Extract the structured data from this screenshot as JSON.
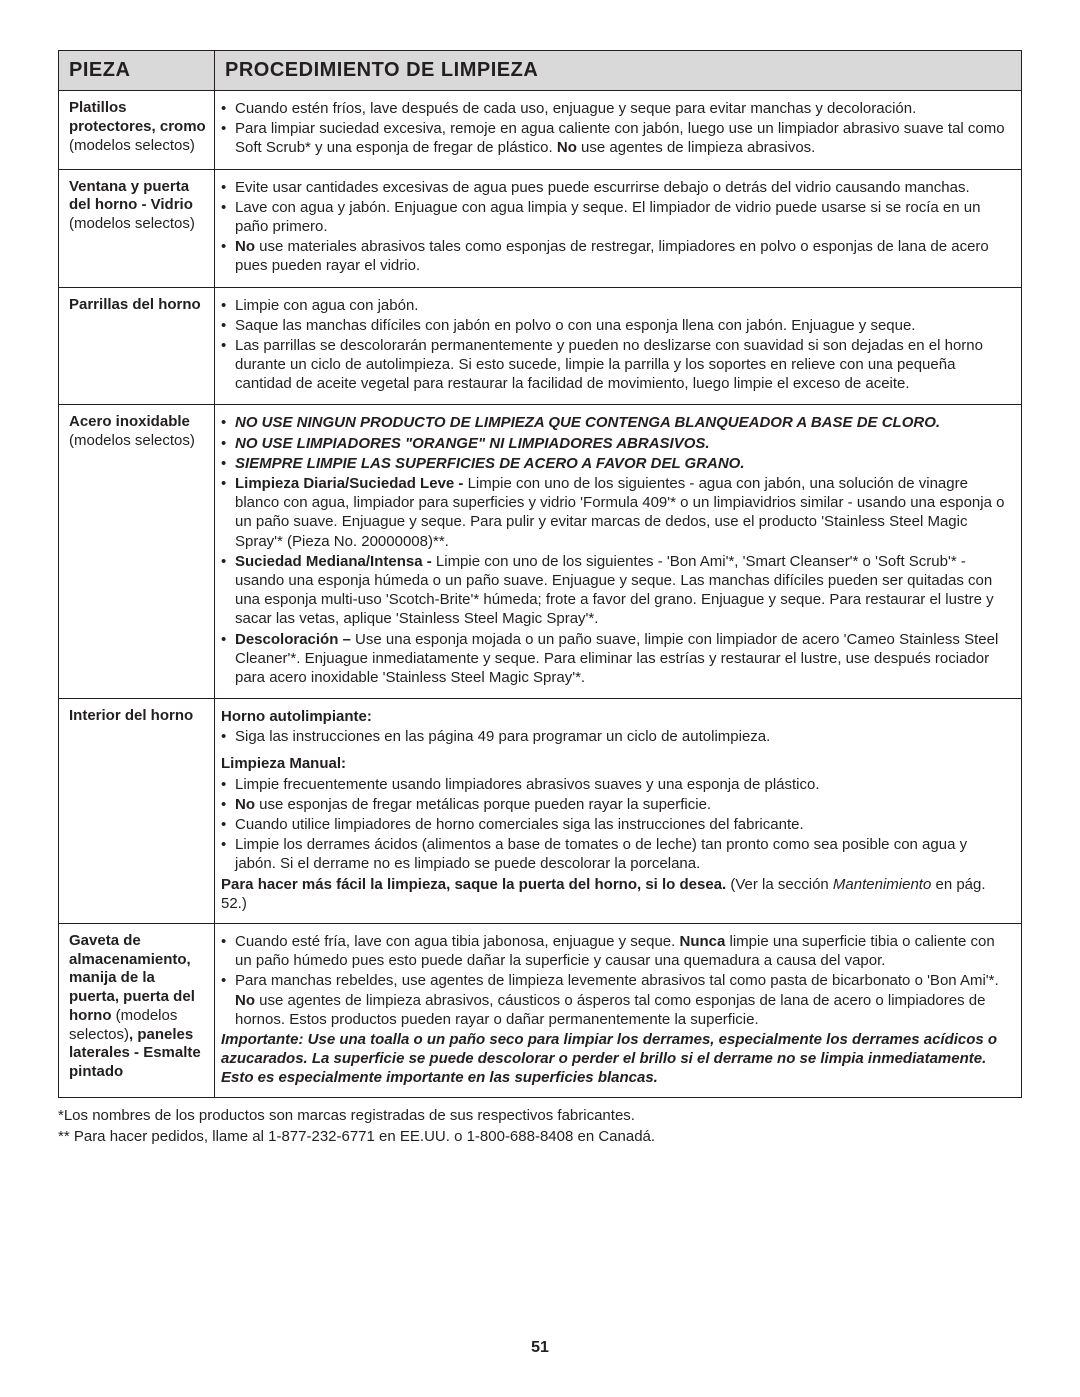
{
  "headers": {
    "part": "PIEZA",
    "procedure": "PROCEDIMIENTO DE LIMPIEZA"
  },
  "rows": [
    {
      "part": {
        "title": "Platillos protectores, cromo",
        "note": "(modelos selectos)"
      },
      "proc": {
        "blocks": [
          {
            "type": "bullets",
            "items": [
              [
                {
                  "t": "Cuando estén fríos, lave después de cada uso, enjuague y seque para evitar manchas y decoloración."
                }
              ],
              [
                {
                  "t": "Para limpiar suciedad excesiva, remoje en agua caliente con jabón, luego use un limpiador abrasivo suave tal como Soft Scrub* y una esponja de fregar de plástico.  "
                },
                {
                  "t": "No",
                  "style": "bold"
                },
                {
                  "t": " use agentes de limpieza abrasivos."
                }
              ]
            ]
          }
        ]
      }
    },
    {
      "part": {
        "title": "Ventana y puerta del horno - Vidrio",
        "note": "(modelos selectos)"
      },
      "proc": {
        "blocks": [
          {
            "type": "bullets",
            "items": [
              [
                {
                  "t": "Evite usar cantidades excesivas de agua pues puede escurrirse debajo o detrás del vidrio causando manchas."
                }
              ],
              [
                {
                  "t": "Lave con agua y jabón.  Enjuague con agua limpia y seque.  El limpiador de vidrio puede usarse si se rocía en un paño primero."
                }
              ],
              [
                {
                  "t": "No",
                  "style": "bold"
                },
                {
                  "t": " use materiales abrasivos tales como esponjas de restregar, limpiadores en polvo o esponjas de lana de acero pues pueden rayar el vidrio."
                }
              ]
            ]
          }
        ]
      }
    },
    {
      "part": {
        "title": "Parrillas del horno",
        "note": ""
      },
      "proc": {
        "blocks": [
          {
            "type": "bullets",
            "items": [
              [
                {
                  "t": "Limpie con agua con jabón."
                }
              ],
              [
                {
                  "t": "Saque las manchas difíciles con jabón en polvo o con una esponja llena con jabón.  Enjuague y seque."
                }
              ],
              [
                {
                  "t": "Las parrillas se descolorarán permanentemente y pueden no deslizarse con suavidad si son dejadas en el horno durante un ciclo de autolimpieza. Si esto sucede, limpie la parrilla y los soportes en relieve con una pequeña cantidad de aceite vegetal para restaurar la facilidad de movimiento, luego limpie el exceso de aceite."
                }
              ]
            ]
          }
        ]
      }
    },
    {
      "part": {
        "title": "Acero inoxidable",
        "note": "(modelos selectos)"
      },
      "proc": {
        "blocks": [
          {
            "type": "bullets",
            "items": [
              [
                {
                  "t": "NO USE NINGUN PRODUCTO DE LIMPIEZA QUE CONTENGA BLANQUEADOR A BASE DE CLORO.",
                  "style": "boldital"
                }
              ],
              [
                {
                  "t": "NO USE LIMPIADORES \"ORANGE\" NI LIMPIADORES ABRASIVOS.",
                  "style": "boldital"
                }
              ],
              [
                {
                  "t": "SIEMPRE LIMPIE LAS SUPERFICIES DE ACERO A FAVOR DEL GRANO.",
                  "style": "boldital"
                }
              ],
              [
                {
                  "t": "Limpieza Diaria/Suciedad Leve - ",
                  "style": "bold"
                },
                {
                  "t": "Limpie con uno de los siguientes - agua con jabón, una solución de vinagre blanco con agua, limpiador para superficies y vidrio 'Formula 409'* o un limpiavidrios similar - usando una esponja o un paño suave.  Enjuague y seque.  Para pulir y evitar marcas de dedos, use el producto 'Stainless Steel Magic Spray'* (Pieza No. 20000008)**."
                }
              ],
              [
                {
                  "t": "Suciedad Mediana/Intensa - ",
                  "style": "bold"
                },
                {
                  "t": "Limpie con uno de los siguientes - 'Bon Ami'*, 'Smart Cleanser'* o 'Soft Scrub'* - usando una esponja húmeda o un paño suave.  Enjuague y seque.  Las manchas difíciles pueden ser quitadas con una esponja multi-uso 'Scotch-Brite'* húmeda; frote a favor del grano.  Enjuague y seque.  Para restaurar el lustre y sacar las vetas, aplique 'Stainless Steel Magic Spray'*."
                }
              ],
              [
                {
                  "t": "Descoloración – ",
                  "style": "bold"
                },
                {
                  "t": "Use una esponja mojada o un paño suave, limpie con limpiador de acero 'Cameo Stainless Steel Cleaner'*. Enjuague inmediatamente y seque. Para eliminar las estrías y restaurar el lustre, use después rociador para acero inoxidable 'Stainless Steel Magic Spray'*."
                }
              ]
            ]
          }
        ]
      }
    },
    {
      "part": {
        "title": "Interior del horno",
        "note": ""
      },
      "proc": {
        "blocks": [
          {
            "type": "heading",
            "text": "Horno autolimpiante:"
          },
          {
            "type": "bullets",
            "items": [
              [
                {
                  "t": "Siga las instrucciones en las página 49 para programar un ciclo de autolimpieza."
                }
              ]
            ]
          },
          {
            "type": "heading",
            "text": "Limpieza Manual:",
            "gap": true
          },
          {
            "type": "bullets",
            "items": [
              [
                {
                  "t": "Limpie frecuentemente usando limpiadores abrasivos suaves y una esponja de plástico."
                }
              ],
              [
                {
                  "t": "No",
                  "style": "bold"
                },
                {
                  "t": " use esponjas de fregar metálicas porque pueden rayar la superficie."
                }
              ],
              [
                {
                  "t": "Cuando utilice limpiadores de horno comerciales siga las instrucciones del fabricante."
                }
              ],
              [
                {
                  "t": "Limpie los derrames ácidos (alimentos a base de tomates o de leche) tan pronto como sea posible con agua y jabón. Si el derrame no es limpiado se puede descolorar la porcelana."
                }
              ]
            ]
          },
          {
            "type": "paragraph",
            "runs": [
              {
                "t": "Para hacer más fácil la limpieza, saque la puerta del horno, si lo desea.",
                "style": "bold"
              },
              {
                "t": "  (Ver la sección "
              },
              {
                "t": "Mantenimiento",
                "style": "ital"
              },
              {
                "t": " en pág. 52.)"
              }
            ]
          }
        ]
      }
    },
    {
      "part": {
        "title_runs": [
          {
            "t": "Gaveta de almacenamiento, manija de la puerta, puerta del horno ",
            "style": "bold"
          },
          {
            "t": "(modelos selectos)"
          },
          {
            "t": ", paneles laterales - Esmalte pintado",
            "style": "bold"
          }
        ]
      },
      "proc": {
        "blocks": [
          {
            "type": "bullets",
            "items": [
              [
                {
                  "t": "Cuando esté fría, lave con agua tibia jabonosa, enjuague y seque. "
                },
                {
                  "t": "Nunca",
                  "style": "bold"
                },
                {
                  "t": " limpie una superficie tibia o caliente con un paño húmedo pues esto puede dañar la superficie y causar una quemadura a causa del vapor."
                }
              ],
              [
                {
                  "t": "Para manchas rebeldes, use agentes de limpieza levemente abrasivos tal como pasta de bicarbonato o 'Bon Ami'*. "
                },
                {
                  "t": "No",
                  "style": "bold"
                },
                {
                  "t": " use agentes de limpieza abrasivos, cáusticos o ásperos tal como esponjas de lana de acero o limpiadores de hornos. Estos productos pueden rayar o dañar permanentemente la superficie."
                }
              ]
            ]
          },
          {
            "type": "paragraph",
            "runs": [
              {
                "t": "Importante: Use una toalla o un paño seco para limpiar los derrames, especialmente los derrames acídicos o azucarados. La superficie se puede descolorar o perder el brillo si el derrame no se limpia inmediatamente. Esto es especialmente importante en las superficies blancas.",
                "style": "boldital"
              }
            ]
          }
        ]
      }
    }
  ],
  "footnotes": [
    "*Los nombres de los productos son marcas registradas de sus respectivos fabricantes.",
    "** Para hacer pedidos, llame al 1-877-232-6771 en EE.UU. o 1-800-688-8408 en Canadá."
  ],
  "page_number": "51"
}
